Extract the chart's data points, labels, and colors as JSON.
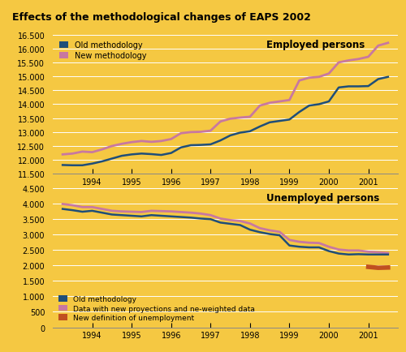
{
  "title": "Effects of the methodological changes of EAPS 2002",
  "bg_color": "#F5C842",
  "top_chart": {
    "label": "Employed persons",
    "ylim": [
      11500,
      16500
    ],
    "yticks": [
      11500,
      12000,
      12500,
      13000,
      13500,
      14000,
      14500,
      15000,
      15500,
      16000,
      16500
    ],
    "series": {
      "old": {
        "label": "Old methodology",
        "color": "#1F4E79",
        "x": [
          1993.25,
          1993.5,
          1993.75,
          1994.0,
          1994.25,
          1994.5,
          1994.75,
          1995.0,
          1995.25,
          1995.5,
          1995.75,
          1996.0,
          1996.25,
          1996.5,
          1996.75,
          1997.0,
          1997.25,
          1997.5,
          1997.75,
          1998.0,
          1998.25,
          1998.5,
          1998.75,
          1999.0,
          1999.25,
          1999.5,
          1999.75,
          2000.0,
          2000.25,
          2000.5,
          2000.75,
          2001.0,
          2001.25,
          2001.5
        ],
        "y": [
          11820,
          11810,
          11810,
          11870,
          11950,
          12050,
          12150,
          12200,
          12230,
          12210,
          12180,
          12250,
          12450,
          12530,
          12540,
          12560,
          12700,
          12880,
          12980,
          13030,
          13200,
          13350,
          13400,
          13450,
          13720,
          13950,
          14000,
          14100,
          14600,
          14640,
          14640,
          14650,
          14900,
          14980
        ]
      },
      "new": {
        "label": "New methodology",
        "color": "#C878A0",
        "x": [
          1993.25,
          1993.5,
          1993.75,
          1994.0,
          1994.25,
          1994.5,
          1994.75,
          1995.0,
          1995.25,
          1995.5,
          1995.75,
          1996.0,
          1996.25,
          1996.5,
          1996.75,
          1997.0,
          1997.25,
          1997.5,
          1997.75,
          1998.0,
          1998.25,
          1998.5,
          1998.75,
          1999.0,
          1999.25,
          1999.5,
          1999.75,
          2000.0,
          2000.25,
          2000.5,
          2000.75,
          2001.0,
          2001.25,
          2001.5
        ],
        "y": [
          12200,
          12230,
          12300,
          12280,
          12380,
          12500,
          12580,
          12640,
          12680,
          12650,
          12680,
          12750,
          12960,
          13000,
          13010,
          13050,
          13380,
          13480,
          13520,
          13550,
          13950,
          14050,
          14100,
          14150,
          14850,
          14950,
          14980,
          15100,
          15500,
          15570,
          15620,
          15700,
          16100,
          16200
        ]
      }
    }
  },
  "bottom_chart": {
    "label": "Unemployed persons",
    "ylim": [
      0,
      4500
    ],
    "yticks": [
      0,
      500,
      1000,
      1500,
      2000,
      2500,
      3000,
      3500,
      4000,
      4500
    ],
    "series": {
      "old": {
        "label": "Old methodology",
        "color": "#1F4E79",
        "x": [
          1993.25,
          1993.5,
          1993.75,
          1994.0,
          1994.25,
          1994.5,
          1994.75,
          1995.0,
          1995.25,
          1995.5,
          1995.75,
          1996.0,
          1996.25,
          1996.5,
          1996.75,
          1997.0,
          1997.25,
          1997.5,
          1997.75,
          1998.0,
          1998.25,
          1998.5,
          1998.75,
          1999.0,
          1999.25,
          1999.5,
          1999.75,
          2000.0,
          2000.25,
          2000.5,
          2000.75,
          2001.0,
          2001.25,
          2001.5
        ],
        "y": [
          3820,
          3780,
          3730,
          3760,
          3700,
          3640,
          3620,
          3600,
          3580,
          3620,
          3600,
          3580,
          3560,
          3540,
          3510,
          3490,
          3380,
          3340,
          3300,
          3150,
          3070,
          3010,
          2970,
          2640,
          2600,
          2580,
          2580,
          2460,
          2380,
          2350,
          2360,
          2350,
          2350,
          2350
        ]
      },
      "new_proj": {
        "label": "Data with new proyections and ne-weighted data",
        "color": "#C878A0",
        "x": [
          1993.25,
          1993.5,
          1993.75,
          1994.0,
          1994.25,
          1994.5,
          1994.75,
          1995.0,
          1995.25,
          1995.5,
          1995.75,
          1996.0,
          1996.25,
          1996.5,
          1996.75,
          1997.0,
          1997.25,
          1997.5,
          1997.75,
          1998.0,
          1998.25,
          1998.5,
          1998.75,
          1999.0,
          1999.25,
          1999.5,
          1999.75,
          2000.0,
          2000.25,
          2000.5,
          2000.75,
          2001.0,
          2001.25,
          2001.5
        ],
        "y": [
          3980,
          3940,
          3880,
          3880,
          3820,
          3760,
          3740,
          3730,
          3720,
          3760,
          3750,
          3740,
          3720,
          3700,
          3670,
          3620,
          3510,
          3460,
          3430,
          3350,
          3200,
          3130,
          3080,
          2820,
          2760,
          2730,
          2720,
          2600,
          2510,
          2480,
          2480,
          2440,
          2420,
          2400
        ]
      },
      "new_def": {
        "label": "New definition of unemployment",
        "color": "#C05020",
        "x": [
          2001.0,
          2001.25,
          2001.5
        ],
        "y": [
          1950,
          1920,
          1930
        ]
      }
    }
  },
  "xlim": [
    1993.0,
    2001.75
  ],
  "xticks": [
    1994,
    1995,
    1996,
    1997,
    1998,
    1999,
    2000,
    2001
  ],
  "xtick_labels": [
    "1994",
    "1995",
    "1996",
    "1997",
    "1998",
    "1999",
    "2000",
    "2001"
  ]
}
